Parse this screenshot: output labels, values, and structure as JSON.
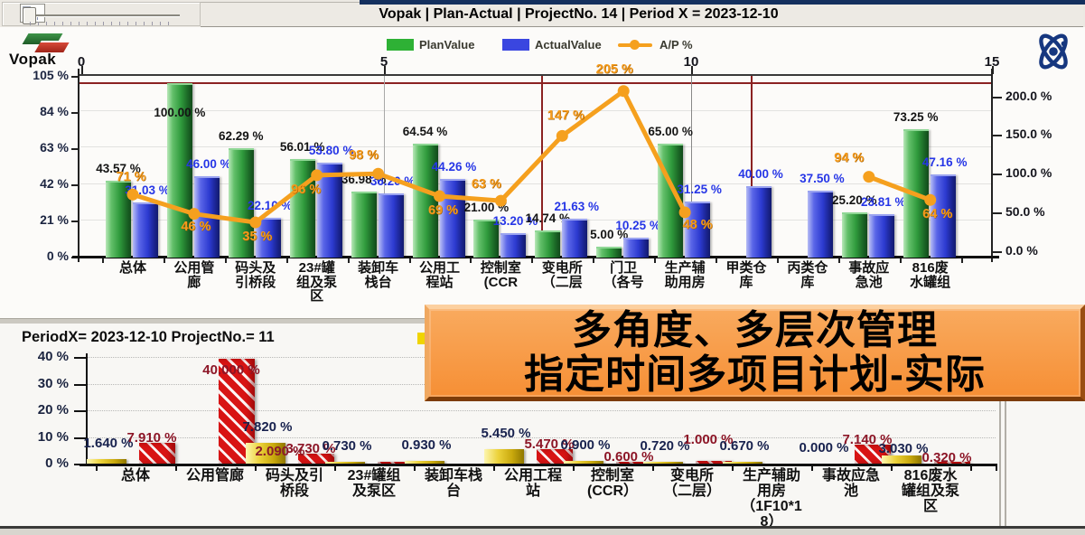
{
  "window": {
    "title": "Vopak  | Plan-Actual | ProjectNo. 14 | Period X = 2023-12-10",
    "vopak_logo_text": "Vopak"
  },
  "banner": {
    "line1": "多角度、多层次管理",
    "line2": "指定时间多项目计划-实际",
    "bg_color": "#f79d4a",
    "text_color": "#000000"
  },
  "chart_data": [
    {
      "type": "bar",
      "subtype": "grouped bars with line on secondary axis",
      "title": "Vopak  | Plan-Actual | ProjectNo. 14 | Period X = 2023-12-10",
      "legend_position": "top",
      "legend_items": [
        {
          "label": "PlanValue",
          "color": "#2eb135",
          "marker": "swatch"
        },
        {
          "label": "ActualValue",
          "color": "#3a46e0",
          "marker": "swatch"
        },
        {
          "label": "A/P %",
          "color": "#f5a01e",
          "marker": "line-dot"
        }
      ],
      "top_axis_ticks": [
        "0",
        "5",
        "10",
        "15"
      ],
      "left_axis_ticks": [
        "105 %",
        "84 %",
        "63 %",
        "42 %",
        "21 %",
        "0 %"
      ],
      "right_axis_ticks": [
        "200.0 %",
        "150.0 %",
        "100.0 %",
        "50.0 %",
        "0.0 %"
      ],
      "left_axis_range": [
        0,
        105
      ],
      "right_axis_range": [
        0,
        218
      ],
      "reference_line_at_left_pct": 100,
      "grid": true,
      "categories": [
        "总体",
        "公用管廊",
        "码头及引桥段",
        "23#罐组及泵区",
        "装卸车栈台",
        "公用工程站",
        "控制室（CCR）",
        "变电所（二层）",
        "门卫（各号）",
        "生产辅助用房",
        "甲类仓库",
        "丙类仓库",
        "事故应急池",
        "816废水罐组"
      ],
      "category_display_lines": [
        [
          "总体"
        ],
        [
          "公用管",
          "廊"
        ],
        [
          "码头及",
          "引桥段"
        ],
        [
          "23#罐",
          "组及泵",
          "区"
        ],
        [
          "装卸车",
          "栈台"
        ],
        [
          "公用工",
          "程站"
        ],
        [
          "控制室",
          "(CCR"
        ],
        [
          "变电所",
          "（二层"
        ],
        [
          "门卫",
          "（各号"
        ],
        [
          "生产辅",
          "助用房"
        ],
        [
          "甲类仓",
          "库"
        ],
        [
          "丙类仓",
          "库"
        ],
        [
          "事故应",
          "急池"
        ],
        [
          "816废",
          "水罐组"
        ]
      ],
      "series": [
        {
          "name": "PlanValue",
          "axis": "left",
          "color": "#2eb135",
          "values": [
            43.57,
            100.0,
            62.29,
            56.01,
            36.98,
            64.54,
            21.0,
            14.74,
            5.0,
            65.0,
            null,
            null,
            25.2,
            73.25
          ],
          "labels": [
            "43.57 %",
            "100.00 %",
            "62.29 %",
            "56.01 %",
            "36.98 %",
            "64.54 %",
            "21.00 %",
            "14.74 %",
            "5.00 %",
            "65.00 %",
            "",
            "",
            "25.20 %",
            "73.25 %"
          ]
        },
        {
          "name": "ActualValue",
          "axis": "left",
          "color": "#3a46e0",
          "values": [
            31.03,
            46.0,
            22.1,
            53.8,
            36.2,
            44.26,
            13.2,
            21.63,
            10.25,
            31.25,
            40.0,
            37.5,
            23.81,
            47.16
          ],
          "labels": [
            "31.03 %",
            "46.00 %",
            "22.10 %",
            "53.80 %",
            "36.20 %",
            "44.26 %",
            "13.20 %",
            "21.63 %",
            "10.25 %",
            "31.25 %",
            "40.00 %",
            "37.50 %",
            "23.81 %",
            "47.16 %"
          ]
        },
        {
          "name": "A/P %",
          "axis": "right",
          "color": "#f5a01e",
          "values": [
            71,
            46,
            35,
            96,
            98,
            69,
            63,
            147,
            205,
            48,
            null,
            null,
            94,
            64
          ],
          "labels": [
            "71 %",
            "46 %",
            "35 %",
            "96 %",
            "98 %",
            "69 %",
            "63 %",
            "147 %",
            "205 %",
            "48 %",
            "",
            "",
            "94 %",
            "64 %"
          ]
        }
      ]
    },
    {
      "type": "bar",
      "subtype": "grouped bars, one period, multiple projects",
      "title": "PeriodX= 2023-12-10 ProjectNo.= 11",
      "y_axis_ticks": [
        "40 %",
        "30 %",
        "20 %",
        "10 %",
        "0 %"
      ],
      "y_axis_range": [
        0,
        42
      ],
      "grid": true,
      "legend_visible_swatch_color": "#f0d400",
      "categories": [
        "总体",
        "公用管廊",
        "码头及引桥段",
        "23#罐组及泵区",
        "装卸车栈台",
        "公用工程站",
        "控制室(CCR）",
        "变电所（二层）",
        "生产辅助用房（1F10*18）",
        "事故应急池",
        "816废水罐组及泵区"
      ],
      "category_display_lines": [
        [
          "总体"
        ],
        [
          "公用管廊"
        ],
        [
          "码头及引",
          "桥段"
        ],
        [
          "23#罐组",
          "及泵区"
        ],
        [
          "装卸车栈",
          "台"
        ],
        [
          "公用工程",
          "站"
        ],
        [
          "控制室",
          "(CCR）"
        ],
        [
          "变电所",
          "（二层）"
        ],
        [
          "生产辅助",
          "用房",
          "（1F10*1",
          "8）"
        ],
        [
          "事故应急",
          "池"
        ],
        [
          "816废水",
          "罐组及泵",
          "区"
        ]
      ],
      "series": [
        {
          "name": "yellow-bars",
          "color": "#e7c71f",
          "values": [
            1.64,
            null,
            7.82,
            0.73,
            0.93,
            5.45,
            0.9,
            0.72,
            0.67,
            0.0,
            3.03
          ],
          "labels": [
            "1.640 %",
            "",
            "7.820 %",
            "0.730 %",
            "0.930 %",
            "5.450 %",
            "0.900 %",
            "0.720 %",
            "0.670 %",
            "0.000 %",
            "3.030 %"
          ]
        },
        {
          "name": "red-hatched-bars",
          "color": "#d61212",
          "values": [
            7.91,
            40.0,
            3.73,
            0.4,
            null,
            5.47,
            0.6,
            1.0,
            null,
            7.14,
            0.32
          ],
          "labels": [
            "7.910 %",
            "40.000 %",
            "3.730 %",
            "",
            "",
            "5.470 %",
            "0.600 %",
            "1.000 %",
            "",
            "7.140 %",
            "0.320 %"
          ]
        }
      ],
      "extra_labels": [
        {
          "text": "2.090 %",
          "category_index": 2,
          "color": "#8b1a2a"
        }
      ]
    }
  ]
}
